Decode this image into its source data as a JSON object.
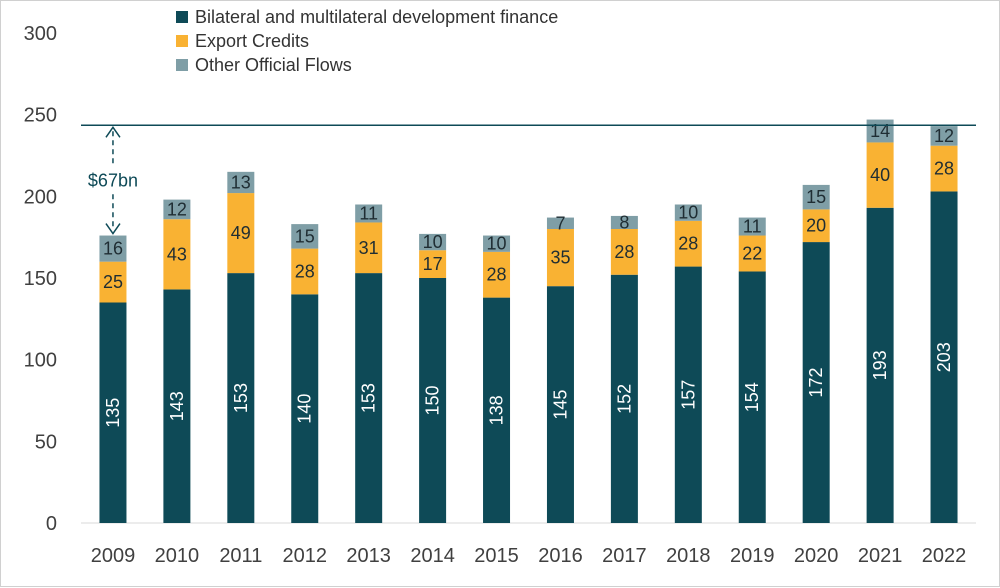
{
  "chart_data": {
    "type": "bar",
    "stacked": true,
    "categories": [
      "2009",
      "2010",
      "2011",
      "2012",
      "2013",
      "2014",
      "2015",
      "2016",
      "2017",
      "2018",
      "2019",
      "2020",
      "2021",
      "2022"
    ],
    "series": [
      {
        "name": "Bilateral and multilateral development finance",
        "color": "#0e4a57",
        "values": [
          135,
          143,
          153,
          140,
          153,
          150,
          138,
          145,
          152,
          157,
          154,
          172,
          193,
          203
        ]
      },
      {
        "name": "Export Credits",
        "color": "#f9b233",
        "values": [
          25,
          43,
          49,
          28,
          31,
          17,
          28,
          35,
          28,
          28,
          22,
          20,
          40,
          28
        ]
      },
      {
        "name": "Other Official Flows",
        "color": "#7f9ea6",
        "values": [
          16,
          12,
          13,
          15,
          11,
          10,
          10,
          7,
          8,
          10,
          11,
          15,
          14,
          12
        ]
      }
    ],
    "ylim": [
      0,
      300
    ],
    "yticks": [
      0,
      50,
      100,
      150,
      200,
      250,
      300
    ],
    "grid": false,
    "legend_position": "top-left",
    "reference_line": {
      "value": 243.5,
      "color": "#0e4a57"
    },
    "annotation": {
      "text": "$67bn",
      "from_value": 176,
      "to_value": 243.5,
      "category": "2009"
    }
  }
}
